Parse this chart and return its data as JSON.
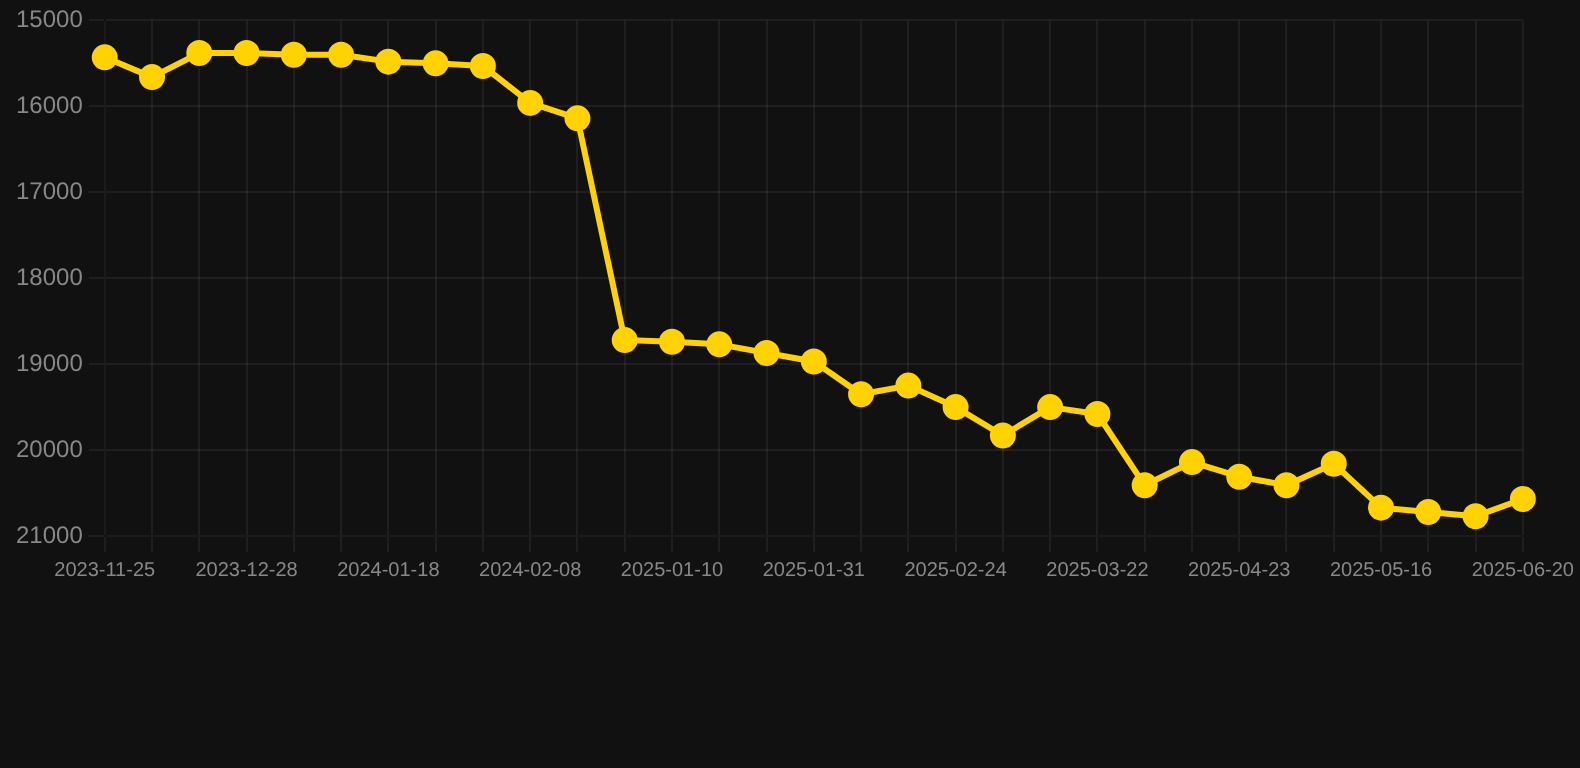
{
  "chart_data": {
    "type": "line",
    "categories": [
      "2023-11-25",
      null,
      null,
      "2023-12-28",
      null,
      null,
      "2024-01-18",
      null,
      null,
      "2024-02-08",
      null,
      null,
      "2025-01-10",
      null,
      null,
      "2025-01-31",
      null,
      null,
      "2025-02-24",
      null,
      null,
      "2025-03-22",
      null,
      null,
      "2025-04-23",
      null,
      null,
      "2025-05-16",
      null,
      null,
      "2025-06-20"
    ],
    "series": [
      {
        "color": "#ffd200",
        "values": [
          15430,
          15660,
          15380,
          15380,
          15400,
          15400,
          15480,
          15500,
          15530,
          15960,
          16140,
          18720,
          18740,
          18770,
          18870,
          18970,
          19350,
          19250,
          19500,
          19830,
          19500,
          19580,
          20410,
          20140,
          20310,
          20410,
          20160,
          20670,
          20720,
          20770,
          20570
        ]
      }
    ],
    "ylim": [
      21000,
      15000
    ],
    "yticks": [
      15000,
      16000,
      17000,
      18000,
      19000,
      20000,
      21000
    ],
    "grid": true,
    "marker": "circle",
    "line_style": "solid",
    "legend": false
  }
}
